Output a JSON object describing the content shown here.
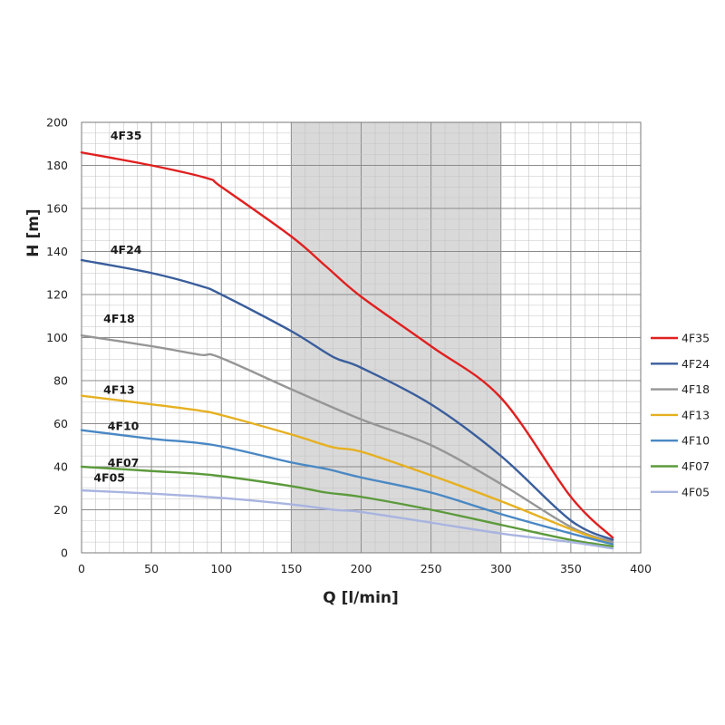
{
  "chart_data": {
    "type": "line",
    "xlabel": "Q [l/min]",
    "ylabel": "H [m]",
    "xlim": [
      0,
      400
    ],
    "ylim": [
      0,
      200
    ],
    "xticks": [
      0,
      50,
      100,
      150,
      200,
      250,
      300,
      350,
      400
    ],
    "yticks": [
      0,
      20,
      40,
      60,
      80,
      100,
      120,
      140,
      160,
      180,
      200
    ],
    "grid": true,
    "highlight_band": [
      150,
      300
    ],
    "highlight_color": "#d9d9d9",
    "legend_position": "right",
    "series": [
      {
        "name": "4F35",
        "color": "#e02020",
        "label_at": [
          20,
          192
        ],
        "x": [
          0,
          50,
          90,
          100,
          150,
          175,
          200,
          250,
          300,
          350,
          380
        ],
        "y": [
          186,
          180,
          174,
          170,
          147,
          133,
          119,
          96,
          72,
          26,
          7
        ]
      },
      {
        "name": "4F24",
        "color": "#3a5e9c",
        "label_at": [
          20,
          139
        ],
        "x": [
          0,
          50,
          85,
          100,
          150,
          180,
          200,
          250,
          300,
          350,
          380
        ],
        "y": [
          136,
          130,
          124,
          120,
          103,
          91,
          86,
          69,
          45,
          15,
          6
        ]
      },
      {
        "name": "4F18",
        "color": "#969696",
        "label_at": [
          15,
          107
        ],
        "x": [
          0,
          50,
          85,
          98,
          150,
          200,
          250,
          300,
          350,
          380
        ],
        "y": [
          101,
          96,
          92,
          91,
          76,
          62,
          50,
          32,
          12,
          5
        ]
      },
      {
        "name": "4F13",
        "color": "#e6b020",
        "label_at": [
          15,
          74
        ],
        "x": [
          0,
          50,
          85,
          100,
          150,
          180,
          200,
          250,
          300,
          350,
          380
        ],
        "y": [
          73,
          69,
          66,
          64,
          55,
          49,
          47,
          36,
          24,
          11,
          4
        ]
      },
      {
        "name": "4F10",
        "color": "#4a88c4",
        "label_at": [
          18,
          57
        ],
        "x": [
          0,
          50,
          95,
          150,
          175,
          200,
          250,
          300,
          350,
          380
        ],
        "y": [
          57,
          53,
          50,
          42,
          39,
          35,
          28,
          18,
          9,
          4
        ]
      },
      {
        "name": "4F07",
        "color": "#5c9a3c",
        "label_at": [
          18,
          40
        ],
        "x": [
          0,
          50,
          95,
          150,
          175,
          200,
          250,
          300,
          350,
          380
        ],
        "y": [
          40,
          38,
          36,
          31,
          28,
          26,
          20,
          13,
          6,
          3
        ]
      },
      {
        "name": "4F05",
        "color": "#a8b4e0",
        "label_at": [
          8,
          33
        ],
        "x": [
          0,
          50,
          100,
          150,
          180,
          200,
          250,
          300,
          350,
          380
        ],
        "y": [
          29,
          27.5,
          25.5,
          22.5,
          20,
          19,
          14,
          9,
          5,
          2
        ]
      }
    ]
  }
}
